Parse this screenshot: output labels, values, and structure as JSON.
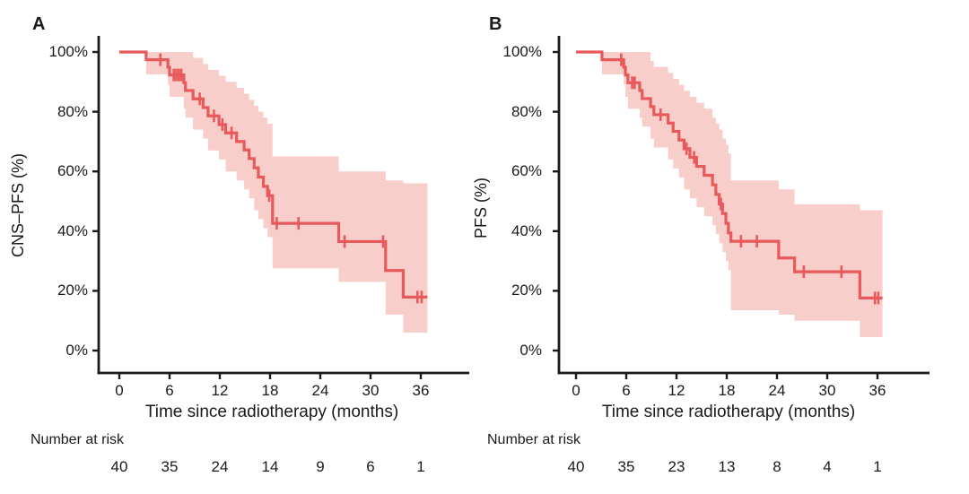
{
  "figure": {
    "background": "#ffffff",
    "text_color": "#1a1a1a",
    "axis_color": "#1a1a1a"
  },
  "chart_data": [
    {
      "type": "line",
      "subtype": "kaplan-meier-step-curve-with-confidence-band",
      "panel": "A",
      "xlabel": "Time since radiotherapy (months)",
      "ylabel": "CNS–PFS (%)",
      "xlim": [
        0,
        38
      ],
      "ylim": [
        0,
        100
      ],
      "grid": false,
      "legend": "none",
      "x_ticks": [
        0,
        6,
        12,
        18,
        24,
        30,
        36
      ],
      "x_tick_labels": [
        "0",
        "6",
        "12",
        "18",
        "24",
        "30",
        "36"
      ],
      "y_ticks": [
        100,
        80,
        60,
        40,
        20,
        0
      ],
      "y_tick_labels": [
        "100%",
        "80%",
        "60%",
        "40%",
        "20%",
        "0%"
      ],
      "curve_color": "#e8595b",
      "band_color": "#f8cecb",
      "end_time": 36.8,
      "steps": [
        [
          0,
          100
        ],
        [
          3.2,
          97.4
        ],
        [
          5.8,
          94.9
        ],
        [
          6.0,
          92.3
        ],
        [
          7.7,
          89.7
        ],
        [
          7.9,
          87.1
        ],
        [
          8.8,
          84.3
        ],
        [
          10.0,
          81.4
        ],
        [
          10.6,
          78.6
        ],
        [
          11.9,
          75.7
        ],
        [
          12.7,
          72.9
        ],
        [
          14.0,
          70.0
        ],
        [
          14.9,
          67.2
        ],
        [
          15.5,
          64.3
        ],
        [
          16.1,
          61.2
        ],
        [
          16.6,
          58.1
        ],
        [
          17.2,
          55.0
        ],
        [
          17.7,
          51.9
        ],
        [
          18.3,
          42.6
        ],
        [
          26.2,
          36.5
        ],
        [
          31.8,
          26.8
        ],
        [
          33.9,
          17.9
        ]
      ],
      "censors": [
        [
          4.9,
          97.4
        ],
        [
          6.5,
          92.3
        ],
        [
          6.8,
          92.3
        ],
        [
          7.1,
          92.3
        ],
        [
          7.4,
          92.3
        ],
        [
          9.6,
          84.3
        ],
        [
          11.3,
          78.6
        ],
        [
          12.3,
          75.7
        ],
        [
          13.4,
          72.9
        ],
        [
          17.9,
          51.9
        ],
        [
          18.8,
          42.6
        ],
        [
          21.4,
          42.6
        ],
        [
          26.9,
          36.5
        ],
        [
          31.5,
          36.5
        ],
        [
          35.6,
          17.9
        ],
        [
          36.1,
          17.9
        ]
      ],
      "band": [
        [
          3.2,
          92.5,
          100
        ],
        [
          5.8,
          89,
          100
        ],
        [
          6.0,
          85,
          100
        ],
        [
          7.7,
          81,
          100
        ],
        [
          7.9,
          78,
          100
        ],
        [
          8.8,
          74,
          98
        ],
        [
          10.0,
          71,
          96
        ],
        [
          10.6,
          67,
          94
        ],
        [
          11.9,
          64,
          92
        ],
        [
          12.7,
          60,
          90
        ],
        [
          14.0,
          57,
          88
        ],
        [
          14.9,
          54,
          86
        ],
        [
          15.5,
          51,
          84
        ],
        [
          16.1,
          47,
          82
        ],
        [
          16.6,
          44,
          80
        ],
        [
          17.2,
          41,
          78
        ],
        [
          17.7,
          38,
          76
        ],
        [
          18.3,
          27.5,
          65
        ],
        [
          26.2,
          23,
          60
        ],
        [
          31.8,
          12,
          57
        ],
        [
          33.9,
          6,
          56
        ]
      ],
      "risk_label": "Number at risk",
      "risk_numbers": [
        "40",
        "35",
        "24",
        "14",
        "9",
        "6",
        "1"
      ]
    },
    {
      "type": "line",
      "subtype": "kaplan-meier-step-curve-with-confidence-band",
      "panel": "B",
      "xlabel": "Time since radiotherapy (months)",
      "ylabel": "PFS (%)",
      "xlim": [
        0,
        38
      ],
      "ylim": [
        0,
        100
      ],
      "grid": false,
      "legend": "none",
      "x_ticks": [
        0,
        6,
        12,
        18,
        24,
        30,
        36
      ],
      "x_tick_labels": [
        "0",
        "6",
        "12",
        "18",
        "24",
        "30",
        "36"
      ],
      "y_ticks": [
        100,
        80,
        60,
        40,
        20,
        0
      ],
      "y_tick_labels": [
        "100%",
        "80%",
        "60%",
        "40%",
        "20%",
        "0%"
      ],
      "curve_color": "#e8595b",
      "band_color": "#f8cecb",
      "end_time": 36.6,
      "steps": [
        [
          0,
          100
        ],
        [
          3.1,
          97.4
        ],
        [
          5.7,
          94.9
        ],
        [
          5.9,
          92.3
        ],
        [
          6.2,
          89.7
        ],
        [
          7.6,
          87.1
        ],
        [
          7.9,
          84.4
        ],
        [
          8.9,
          81.7
        ],
        [
          9.3,
          79.0
        ],
        [
          11.0,
          76.2
        ],
        [
          11.6,
          73.4
        ],
        [
          12.3,
          70.5
        ],
        [
          12.9,
          67.6
        ],
        [
          13.6,
          64.7
        ],
        [
          14.4,
          61.7
        ],
        [
          15.3,
          58.7
        ],
        [
          16.3,
          55.5
        ],
        [
          16.7,
          52.3
        ],
        [
          17.1,
          49.1
        ],
        [
          17.5,
          45.9
        ],
        [
          17.9,
          42.6
        ],
        [
          18.2,
          39.4
        ],
        [
          18.5,
          36.6
        ],
        [
          24.2,
          31.0
        ],
        [
          26.1,
          26.4
        ],
        [
          33.9,
          17.6
        ]
      ],
      "censors": [
        [
          5.4,
          97.4
        ],
        [
          6.7,
          89.7
        ],
        [
          7.0,
          89.7
        ],
        [
          10.1,
          79.0
        ],
        [
          13.2,
          67.6
        ],
        [
          14.1,
          64.7
        ],
        [
          17.3,
          49.1
        ],
        [
          19.7,
          36.6
        ],
        [
          21.6,
          36.6
        ],
        [
          27.2,
          26.4
        ],
        [
          31.7,
          26.4
        ],
        [
          35.7,
          17.6
        ],
        [
          36.1,
          17.6
        ]
      ],
      "band": [
        [
          3.1,
          92.5,
          100
        ],
        [
          5.7,
          89,
          100
        ],
        [
          5.9,
          85,
          100
        ],
        [
          6.2,
          81,
          100
        ],
        [
          7.6,
          78,
          100
        ],
        [
          7.9,
          75,
          100
        ],
        [
          8.9,
          71,
          97
        ],
        [
          9.3,
          68,
          95
        ],
        [
          11.0,
          64,
          93
        ],
        [
          11.6,
          61,
          91
        ],
        [
          12.3,
          58,
          89
        ],
        [
          12.9,
          54,
          87
        ],
        [
          13.6,
          51,
          85
        ],
        [
          14.4,
          48,
          83
        ],
        [
          15.3,
          45,
          81
        ],
        [
          16.3,
          42,
          78
        ],
        [
          16.7,
          39,
          76
        ],
        [
          17.1,
          36,
          74
        ],
        [
          17.5,
          33,
          71
        ],
        [
          17.9,
          30,
          69
        ],
        [
          18.2,
          27,
          66
        ],
        [
          18.5,
          13.5,
          57
        ],
        [
          24.2,
          12,
          54
        ],
        [
          26.1,
          10,
          49
        ],
        [
          33.9,
          4.5,
          47
        ]
      ],
      "risk_label": "Number at risk",
      "risk_numbers": [
        "40",
        "35",
        "23",
        "13",
        "8",
        "4",
        "1"
      ]
    }
  ]
}
